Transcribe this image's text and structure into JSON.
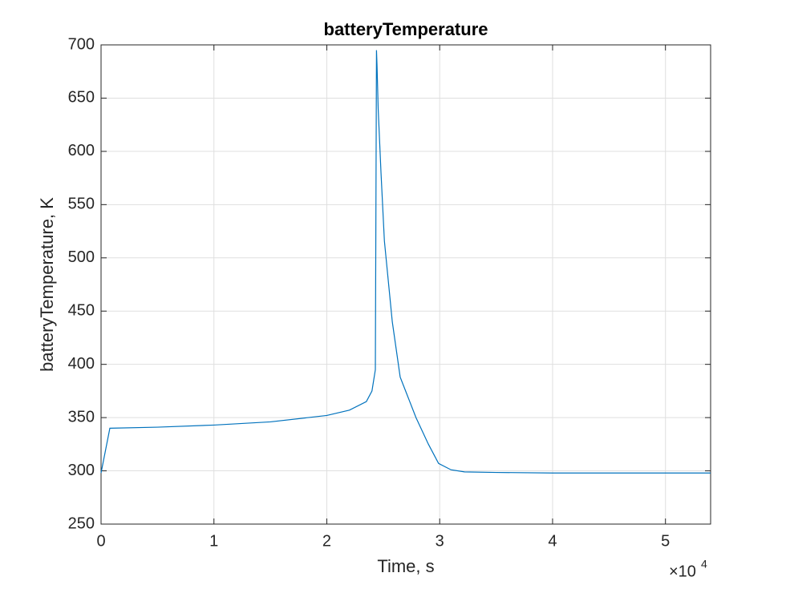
{
  "chart_data": {
    "type": "line",
    "title": "batteryTemperature",
    "x_label": "Time, s",
    "y_label": "batteryTemperature, K",
    "x_exponent_label": {
      "base": "×10",
      "exponent": "4"
    },
    "x": [
      0,
      780,
      5000,
      10000,
      15000,
      20000,
      22000,
      23500,
      24000,
      24300,
      24400,
      24450,
      24550,
      24800,
      25100,
      25800,
      26500,
      27900,
      29000,
      29900,
      31000,
      32200,
      35000,
      40000,
      45000,
      50000,
      54000
    ],
    "series": [
      {
        "name": "batteryTemperature",
        "color": "#0072bd",
        "values": [
          298,
          340,
          341,
          343,
          346,
          352,
          357,
          365,
          375,
          395,
          695,
          680,
          640,
          580,
          516,
          440,
          388,
          350,
          325,
          307,
          301,
          299,
          298.5,
          298,
          298,
          298,
          298
        ]
      }
    ],
    "xlim": [
      0,
      54000
    ],
    "ylim": [
      250,
      700
    ],
    "xticks": [
      {
        "value": 0,
        "label": "0"
      },
      {
        "value": 10000,
        "label": "1"
      },
      {
        "value": 20000,
        "label": "2"
      },
      {
        "value": 30000,
        "label": "3"
      },
      {
        "value": 40000,
        "label": "4"
      },
      {
        "value": 50000,
        "label": "5"
      }
    ],
    "yticks": [
      250,
      300,
      350,
      400,
      450,
      500,
      550,
      600,
      650,
      700
    ],
    "grid": true
  }
}
